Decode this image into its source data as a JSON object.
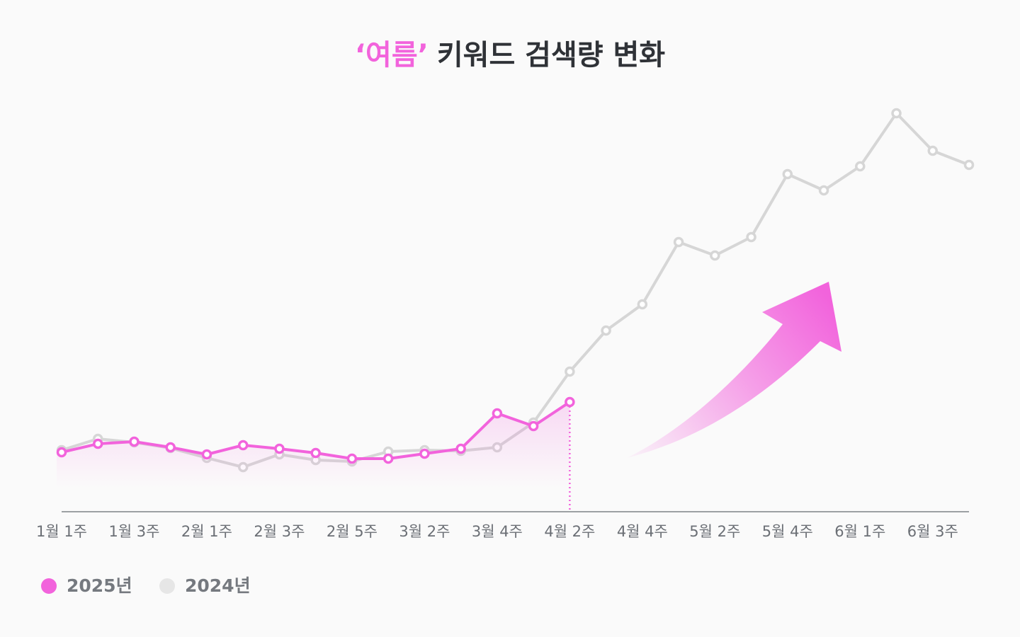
{
  "chart_data": {
    "type": "line",
    "title_highlight": "‘여름’",
    "title": "키워드 검색량 변화",
    "categories": [
      "1월 1주",
      null,
      "1월 3주",
      null,
      "2월 1주",
      null,
      "2월 3주",
      null,
      "2월 5주",
      null,
      "3월 2주",
      null,
      "3월 4주",
      null,
      "4월 2주",
      null,
      "4월 4주",
      null,
      "5월 2주",
      null,
      "5월 4주",
      null,
      "6월 1주",
      null,
      "6월 3주",
      null
    ],
    "series": [
      {
        "name": "2025년",
        "color": "#f263dc",
        "values": [
          16.8,
          19.2,
          19.8,
          18.2,
          16.2,
          18.8,
          17.8,
          16.6,
          15,
          15,
          16.4,
          17.8,
          27.8,
          24.2,
          31,
          null,
          null,
          null,
          null,
          null,
          null,
          null,
          null,
          null,
          null,
          null
        ]
      },
      {
        "name": "2024년",
        "color": "#d6d6d6",
        "values": [
          17.4,
          20.6,
          19.6,
          18,
          15.2,
          12.6,
          16.2,
          14.6,
          14.2,
          17,
          17.4,
          17.2,
          18.2,
          25.2,
          39.6,
          51.2,
          58.6,
          76.2,
          72.4,
          77.6,
          95.4,
          90.8,
          97.6,
          112.6,
          102,
          98
        ]
      }
    ],
    "ylim": [
      0,
      120
    ],
    "grid": false,
    "legend": "bottom-left"
  }
}
